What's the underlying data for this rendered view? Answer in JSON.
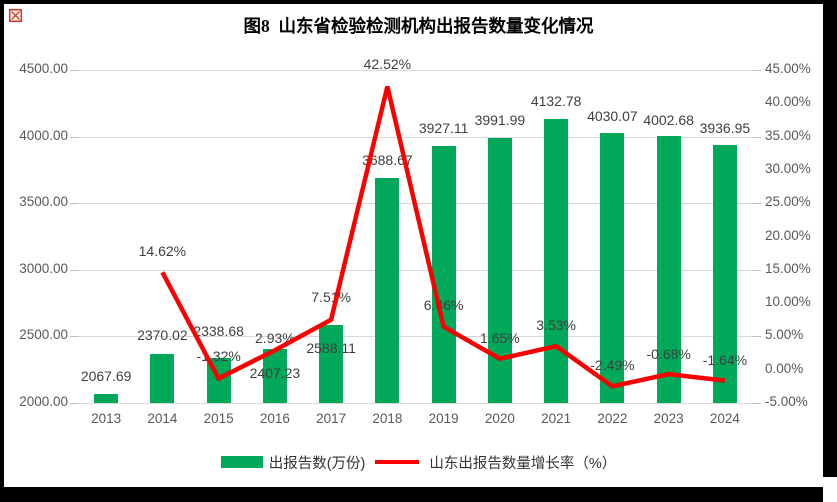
{
  "title": "图8  山东省检验检测机构出报告数量变化情况",
  "colors": {
    "bar_green": "#00a85a",
    "line_red": "#fb0000",
    "gridline": "#d9d9d9",
    "axis_text": "#595959",
    "data_label_text": "#3f3f3f",
    "frame": "#000000",
    "corner_glyph_red": "#e0301e"
  },
  "legend": [
    {
      "label": "出报告数(万份)",
      "swatch": "bar"
    },
    {
      "label": "山东出报告数量增长率（%）",
      "swatch": "line"
    }
  ],
  "chart_data": {
    "type": "bar+line",
    "title": "图8  山东省检验检测机构出报告数量变化情况",
    "categories": [
      "2013",
      "2014",
      "2015",
      "2016",
      "2017",
      "2018",
      "2019",
      "2020",
      "2021",
      "2022",
      "2023",
      "2024"
    ],
    "series": [
      {
        "name": "出报告数(万份)",
        "type": "bar",
        "axis": "left",
        "color": "#00a85a",
        "values": [
          2067.69,
          2370.02,
          2338.68,
          2407.23,
          2588.11,
          3688.67,
          3927.11,
          3991.99,
          4132.78,
          4030.07,
          4002.68,
          3936.95
        ],
        "labels": [
          "2067.69",
          "2370.02",
          "2338.68",
          "2407.23",
          "2588.11",
          "3688.67",
          "3927.11",
          "3991.99",
          "4132.78",
          "4030.07",
          "4002.68",
          "3936.95"
        ]
      },
      {
        "name": "山东出报告数量增长率（%）",
        "type": "line",
        "axis": "right",
        "color": "#fb0000",
        "values": [
          null,
          14.62,
          -1.32,
          2.93,
          7.51,
          42.52,
          6.46,
          1.65,
          3.53,
          -2.49,
          -0.68,
          -1.64
        ],
        "labels": [
          null,
          "14.62%",
          "-1.32%",
          "2.93%",
          "7.51%",
          "42.52%",
          "6.46%",
          "1.65%",
          "3.53%",
          "-2.49%",
          "-0.68%",
          "-1.64%"
        ]
      }
    ],
    "left_axis": {
      "min": 2000,
      "max": 4500,
      "step": 500,
      "ticks": [
        "2000.00",
        "2500.00",
        "3000.00",
        "3500.00",
        "4000.00",
        "4500.00"
      ]
    },
    "right_axis": {
      "min": -5,
      "max": 45,
      "step": 5,
      "ticks": [
        "-5.00%",
        "0.00%",
        "5.00%",
        "10.00%",
        "15.00%",
        "20.00%",
        "25.00%",
        "30.00%",
        "35.00%",
        "40.00%",
        "45.00%"
      ]
    },
    "grid": true,
    "legend_position": "bottom"
  },
  "layout_hints": {
    "value_label_dy": [
      -26,
      -27,
      -35,
      16,
      15,
      -26,
      -26,
      -26,
      -26,
      -25,
      -24,
      -25
    ],
    "pct_label_dy": [
      -29,
      -30,
      -20,
      -31,
      -31,
      -30,
      -29,
      -29,
      -29,
      -28,
      -29
    ]
  }
}
